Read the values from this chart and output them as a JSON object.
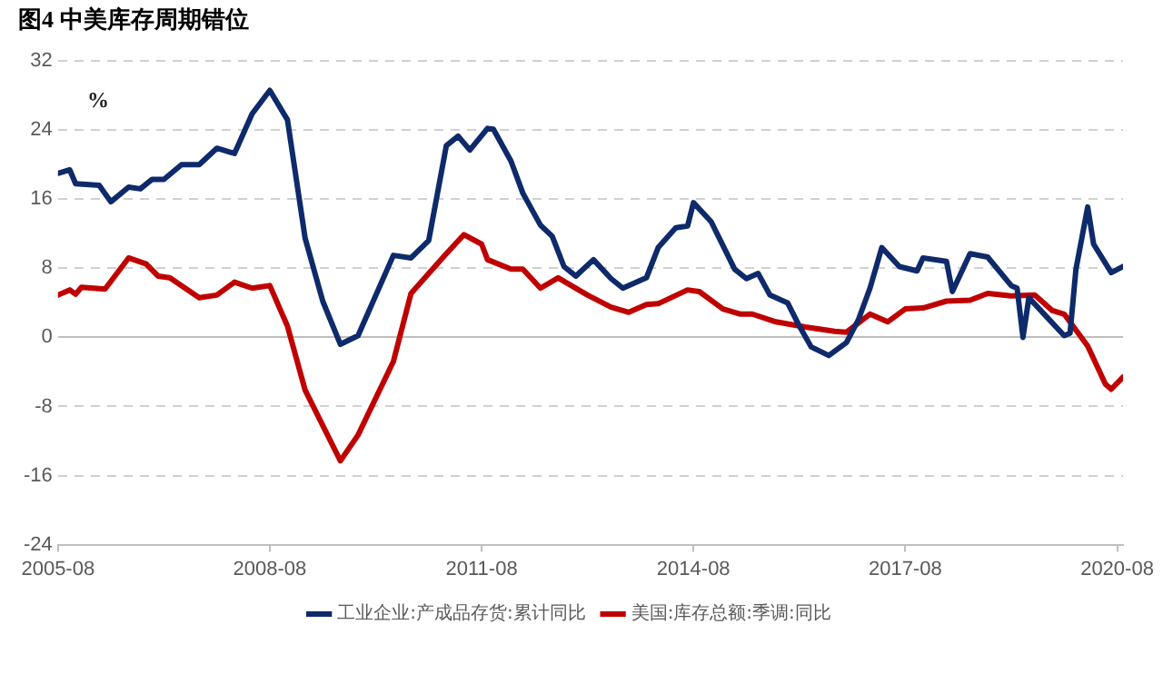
{
  "chart_data": {
    "type": "line",
    "title": "图4 中美库存周期错位",
    "ylabel": "%",
    "xlim": [
      "2005-08",
      "2020-09"
    ],
    "xticks": [
      "2005-08",
      "2008-08",
      "2011-08",
      "2014-08",
      "2017-08",
      "2020-08"
    ],
    "ylim": [
      -24,
      32
    ],
    "yticks": [
      -24,
      -16,
      -8,
      0,
      8,
      16,
      24,
      32
    ],
    "grid": "y",
    "legend": "bottom",
    "marker": "none",
    "line_style": "solid",
    "series": [
      {
        "name": "工业企业:产成品存货:累计同比",
        "color": "#0e2a6b",
        "x": [
          "2005-08",
          "2005-10",
          "2005-11",
          "2006-03",
          "2006-05",
          "2006-08",
          "2006-10",
          "2006-12",
          "2007-02",
          "2007-05",
          "2007-08",
          "2007-11",
          "2008-02",
          "2008-05",
          "2008-08",
          "2008-11",
          "2009-02",
          "2009-05",
          "2009-08",
          "2009-11",
          "2010-05",
          "2010-08",
          "2010-11",
          "2011-02",
          "2011-04",
          "2011-06",
          "2011-09",
          "2011-10",
          "2012-01",
          "2012-03",
          "2012-06",
          "2012-08",
          "2012-10",
          "2012-12",
          "2013-03",
          "2013-06",
          "2013-08",
          "2013-12",
          "2014-02",
          "2014-05",
          "2014-07",
          "2014-08",
          "2014-11",
          "2015-03",
          "2015-05",
          "2015-07",
          "2015-09",
          "2015-12",
          "2016-02",
          "2016-04",
          "2016-07",
          "2016-10",
          "2016-12",
          "2017-02",
          "2017-04",
          "2017-07",
          "2017-10",
          "2017-11",
          "2018-03",
          "2018-04",
          "2018-07",
          "2018-10",
          "2019-02",
          "2019-03",
          "2019-04",
          "2019-05",
          "2019-08",
          "2019-11",
          "2019-12",
          "2020-01",
          "2020-03",
          "2020-04",
          "2020-07",
          "2020-09"
        ],
        "values": [
          19.0,
          19.4,
          17.8,
          17.6,
          15.7,
          17.4,
          17.2,
          18.3,
          18.3,
          20.0,
          20.0,
          21.9,
          21.3,
          25.9,
          28.6,
          25.2,
          11.5,
          4.2,
          -0.8,
          0.2,
          9.5,
          9.2,
          11.2,
          22.2,
          23.3,
          21.7,
          24.2,
          24.1,
          20.4,
          16.7,
          13.0,
          11.7,
          8.2,
          7.1,
          9.0,
          6.8,
          5.7,
          6.9,
          10.4,
          12.7,
          12.9,
          15.6,
          13.4,
          7.9,
          6.8,
          7.4,
          4.9,
          4.0,
          1.3,
          -1.1,
          -2.1,
          -0.6,
          2.0,
          5.7,
          10.4,
          8.2,
          7.7,
          9.2,
          8.8,
          5.3,
          9.7,
          9.3,
          6.0,
          5.7,
          0,
          4.6,
          2.4,
          0.2,
          0.5,
          7.9,
          15.1,
          10.8,
          7.5,
          8.2
        ]
      },
      {
        "name": "美国:库存总额:季调:同比",
        "color": "#c00000",
        "x": [
          "2005-08",
          "2005-10",
          "2005-11",
          "2005-12",
          "2006-04",
          "2006-08",
          "2006-11",
          "2007-01",
          "2007-03",
          "2007-08",
          "2007-11",
          "2008-02",
          "2008-05",
          "2008-08",
          "2008-11",
          "2009-02",
          "2009-05",
          "2009-08",
          "2009-11",
          "2010-05",
          "2010-08",
          "2011-02",
          "2011-05",
          "2011-08",
          "2011-09",
          "2012-01",
          "2012-03",
          "2012-06",
          "2012-09",
          "2013-02",
          "2013-06",
          "2013-09",
          "2013-12",
          "2014-02",
          "2014-07",
          "2014-09",
          "2015-01",
          "2015-04",
          "2015-06",
          "2015-10",
          "2016-03",
          "2016-08",
          "2016-10",
          "2017-02",
          "2017-05",
          "2017-08",
          "2017-11",
          "2018-03",
          "2018-07",
          "2018-10",
          "2019-02",
          "2019-06",
          "2019-09",
          "2019-11",
          "2020-03",
          "2020-06",
          "2020-07",
          "2020-09"
        ],
        "values": [
          4.9,
          5.5,
          5.0,
          5.8,
          5.6,
          9.2,
          8.5,
          7.1,
          6.9,
          4.6,
          4.9,
          6.4,
          5.7,
          6.0,
          1.3,
          -6.1,
          -10.2,
          -14.3,
          -11.3,
          -2.8,
          5.1,
          9.7,
          11.9,
          10.8,
          9.0,
          7.9,
          7.9,
          5.7,
          6.9,
          4.9,
          3.5,
          2.9,
          3.8,
          3.9,
          5.5,
          5.3,
          3.3,
          2.7,
          2.7,
          1.8,
          1.2,
          0.7,
          0.6,
          2.7,
          1.8,
          3.3,
          3.4,
          4.2,
          4.3,
          5.1,
          4.8,
          4.9,
          3.1,
          2.7,
          -1.0,
          -5.4,
          -6.0,
          -4.6
        ]
      }
    ]
  }
}
